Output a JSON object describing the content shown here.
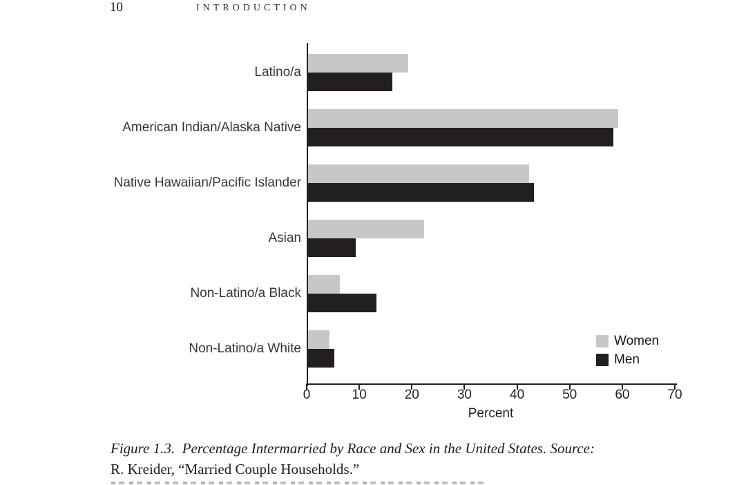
{
  "page": {
    "number": "10",
    "running_head": "INTRODUCTION"
  },
  "colors": {
    "women_bar": "#c6c7c9",
    "men_bar": "#231f20",
    "axis": "#231f20",
    "category_text": "#363638",
    "background": "#ffffff"
  },
  "chart_data": {
    "type": "bar",
    "orientation": "horizontal",
    "title": "",
    "categories": [
      "Latino/a",
      "American Indian/Alaska Native",
      "Native Hawaiian/Pacific Islander",
      "Asian",
      "Non-Latino/a Black",
      "Non-Latino/a White"
    ],
    "series": [
      {
        "name": "Women",
        "color": "#c6c7c9",
        "values": [
          19,
          59,
          42,
          22,
          6,
          4
        ]
      },
      {
        "name": "Men",
        "color": "#231f20",
        "values": [
          16,
          58,
          43,
          9,
          13,
          5
        ]
      }
    ],
    "xlabel": "Percent",
    "ylabel": "",
    "xlim": [
      0,
      70
    ],
    "xticks": [
      0,
      10,
      20,
      30,
      40,
      50,
      60,
      70
    ],
    "grid": false,
    "legend_position": "lower right"
  },
  "caption": {
    "line1": "Figure 1.3.  Percentage Intermarried by Race and Sex in the United States. Source:",
    "line2": "R. Kreider, “Married Couple Households.”"
  }
}
